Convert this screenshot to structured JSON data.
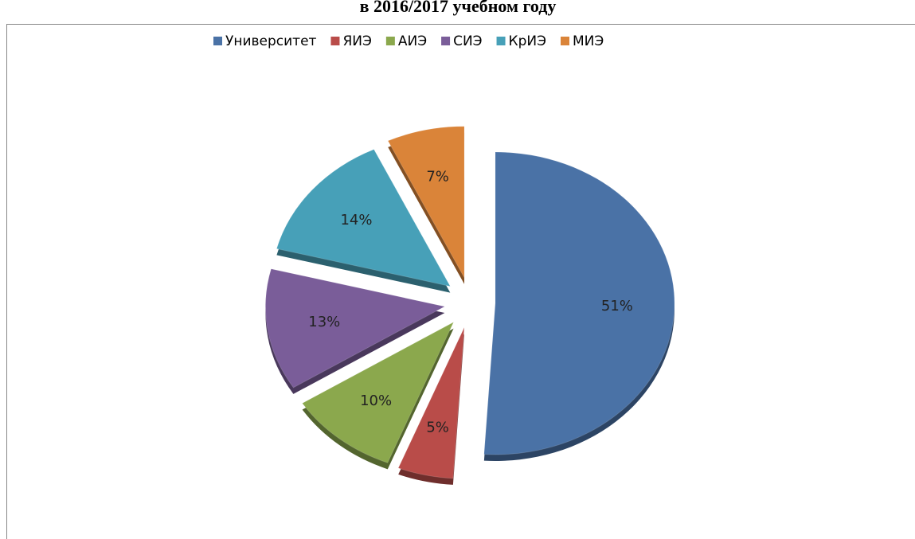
{
  "chart_data": {
    "type": "pie",
    "title": "в 2016/2017 учебном году",
    "categories": [
      "Университет",
      "ЯИЭ",
      "АИЭ",
      "СИЭ",
      "КрИЭ",
      "МИЭ"
    ],
    "values": [
      51,
      5,
      10,
      13,
      14,
      7
    ],
    "value_labels": [
      "51%",
      "5%",
      "10%",
      "13%",
      "14%",
      "7%"
    ],
    "colors": [
      "#4a72a6",
      "#b94c49",
      "#8ba84d",
      "#7a5d99",
      "#47a0b8",
      "#da8439"
    ],
    "legend": "top"
  }
}
